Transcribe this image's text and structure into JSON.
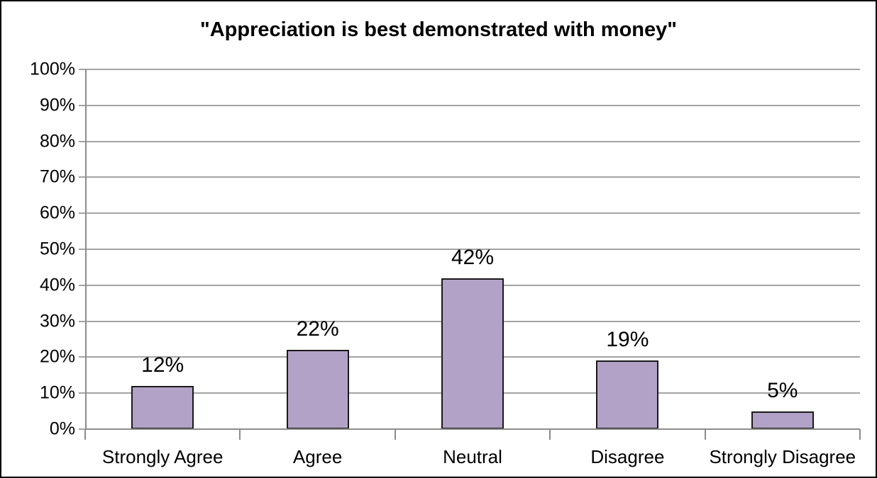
{
  "title": "\"Appreciation is best demonstrated with money\"",
  "chart_data": {
    "type": "bar",
    "title": "\"Appreciation is best demonstrated with money\"",
    "categories": [
      "Strongly Agree",
      "Agree",
      "Neutral",
      "Disagree",
      "Strongly Disagree"
    ],
    "values": [
      12,
      22,
      42,
      19,
      5
    ],
    "data_labels": [
      "12%",
      "22%",
      "42%",
      "19%",
      "5%"
    ],
    "xlabel": "",
    "ylabel": "",
    "ylim": [
      0,
      100
    ],
    "ytick_step": 10,
    "ytick_labels": [
      "0%",
      "10%",
      "20%",
      "30%",
      "40%",
      "50%",
      "60%",
      "70%",
      "80%",
      "90%",
      "100%"
    ],
    "grid": "horizontal",
    "legend": "none",
    "colors": {
      "bar_fill": "#b3a2c7",
      "bar_border": "#1a1a1a",
      "gridline": "#a3a3a3",
      "axis": "#8c8c8c",
      "text": "#000000",
      "background": "#ffffff"
    }
  }
}
